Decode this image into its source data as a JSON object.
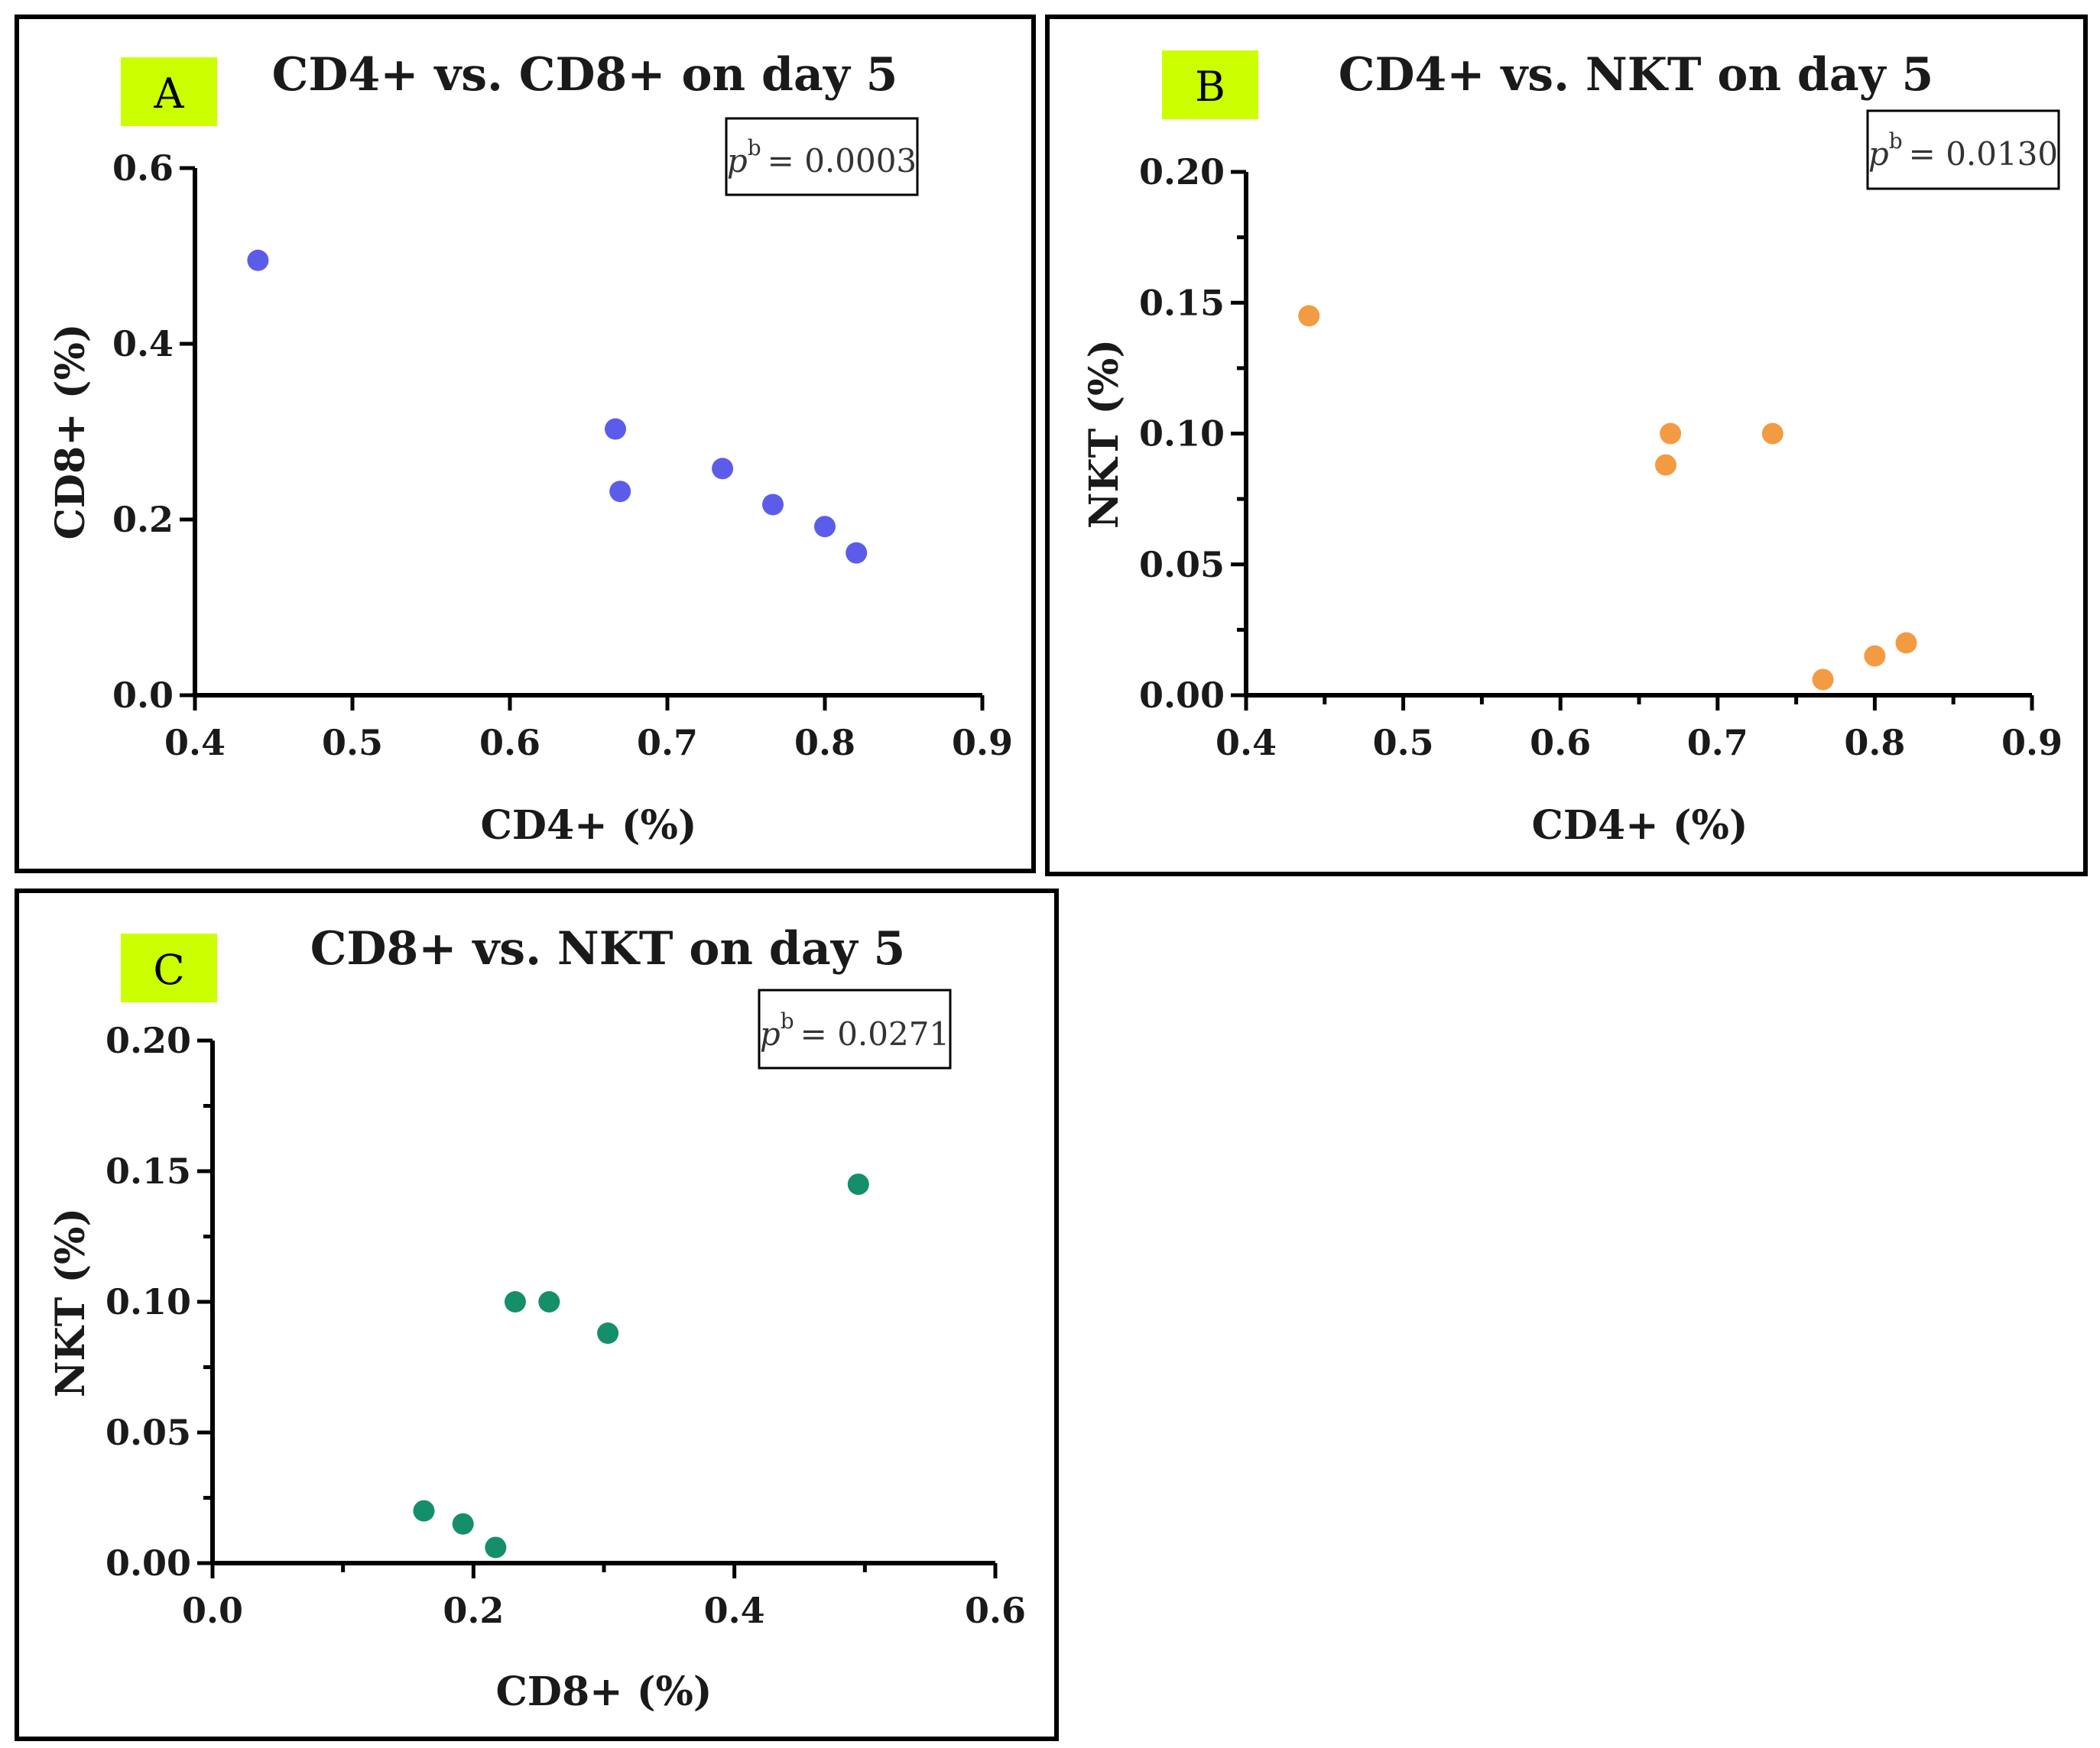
{
  "colors": {
    "panel_border": "#000000",
    "label_bg": "#ccff00",
    "panel_a_points": "#5c5cea",
    "panel_b_points": "#f39b43",
    "panel_c_points": "#148f6a"
  },
  "chart_data": [
    {
      "type": "scatter",
      "panel_label": "A",
      "title": "CD4+ vs. CD8+ on day 5",
      "xlabel": "CD4+ (%)",
      "ylabel": "CD8+ (%)",
      "p_value": {
        "symbol": "p",
        "superscript": "b",
        "text": "= 0.0003"
      },
      "xlim": [
        0.4,
        0.9
      ],
      "ylim": [
        0.0,
        0.6
      ],
      "x_ticks": [
        0.4,
        0.5,
        0.6,
        0.7,
        0.8,
        0.9
      ],
      "x_tick_labels": [
        "0.4",
        "0.5",
        "0.6",
        "0.7",
        "0.8",
        "0.9"
      ],
      "y_ticks": [
        0.0,
        0.2,
        0.4,
        0.6
      ],
      "y_tick_labels": [
        "0.0",
        "0.2",
        "0.4",
        "0.6"
      ],
      "x_minor_ticks": [],
      "y_minor_ticks": [],
      "points": [
        {
          "x": 0.44,
          "y": 0.495
        },
        {
          "x": 0.667,
          "y": 0.303
        },
        {
          "x": 0.67,
          "y": 0.232
        },
        {
          "x": 0.735,
          "y": 0.258
        },
        {
          "x": 0.767,
          "y": 0.217
        },
        {
          "x": 0.8,
          "y": 0.192
        },
        {
          "x": 0.82,
          "y": 0.162
        }
      ]
    },
    {
      "type": "scatter",
      "panel_label": "B",
      "title": "CD4+ vs. NKT on day 5",
      "xlabel": "CD4+ (%)",
      "ylabel": "NKT (%)",
      "p_value": {
        "symbol": "p",
        "superscript": "b",
        "text": "= 0.0130"
      },
      "xlim": [
        0.4,
        0.9
      ],
      "ylim": [
        0.0,
        0.2
      ],
      "x_ticks": [
        0.4,
        0.5,
        0.6,
        0.7,
        0.8,
        0.9
      ],
      "x_tick_labels": [
        "0.4",
        "0.5",
        "0.6",
        "0.7",
        "0.8",
        "0.9"
      ],
      "y_ticks": [
        0.0,
        0.05,
        0.1,
        0.15,
        0.2
      ],
      "y_tick_labels": [
        "0.00",
        "0.05",
        "0.10",
        "0.15",
        "0.20"
      ],
      "x_minor_ticks": [
        0.45,
        0.55,
        0.65,
        0.75,
        0.85
      ],
      "y_minor_ticks": [
        0.025,
        0.075,
        0.125,
        0.175
      ],
      "points": [
        {
          "x": 0.44,
          "y": 0.145
        },
        {
          "x": 0.667,
          "y": 0.088
        },
        {
          "x": 0.67,
          "y": 0.1
        },
        {
          "x": 0.735,
          "y": 0.1
        },
        {
          "x": 0.767,
          "y": 0.006
        },
        {
          "x": 0.8,
          "y": 0.015
        },
        {
          "x": 0.82,
          "y": 0.02
        }
      ]
    },
    {
      "type": "scatter",
      "panel_label": "C",
      "title": "CD8+ vs. NKT on day 5",
      "xlabel": "CD8+ (%)",
      "ylabel": "NKT (%)",
      "p_value": {
        "symbol": "p",
        "superscript": "b",
        "text": "= 0.0271"
      },
      "xlim": [
        0.0,
        0.6
      ],
      "ylim": [
        0.0,
        0.2
      ],
      "x_ticks": [
        0.0,
        0.2,
        0.4,
        0.6
      ],
      "x_tick_labels": [
        "0.0",
        "0.2",
        "0.4",
        "0.6"
      ],
      "y_ticks": [
        0.0,
        0.05,
        0.1,
        0.15,
        0.2
      ],
      "y_tick_labels": [
        "0.00",
        "0.05",
        "0.10",
        "0.15",
        "0.20"
      ],
      "x_minor_ticks": [
        0.1,
        0.3,
        0.5
      ],
      "y_minor_ticks": [
        0.025,
        0.075,
        0.125,
        0.175
      ],
      "points": [
        {
          "x": 0.162,
          "y": 0.02
        },
        {
          "x": 0.192,
          "y": 0.015
        },
        {
          "x": 0.217,
          "y": 0.006
        },
        {
          "x": 0.232,
          "y": 0.1
        },
        {
          "x": 0.258,
          "y": 0.1
        },
        {
          "x": 0.303,
          "y": 0.088
        },
        {
          "x": 0.495,
          "y": 0.145
        }
      ]
    }
  ]
}
